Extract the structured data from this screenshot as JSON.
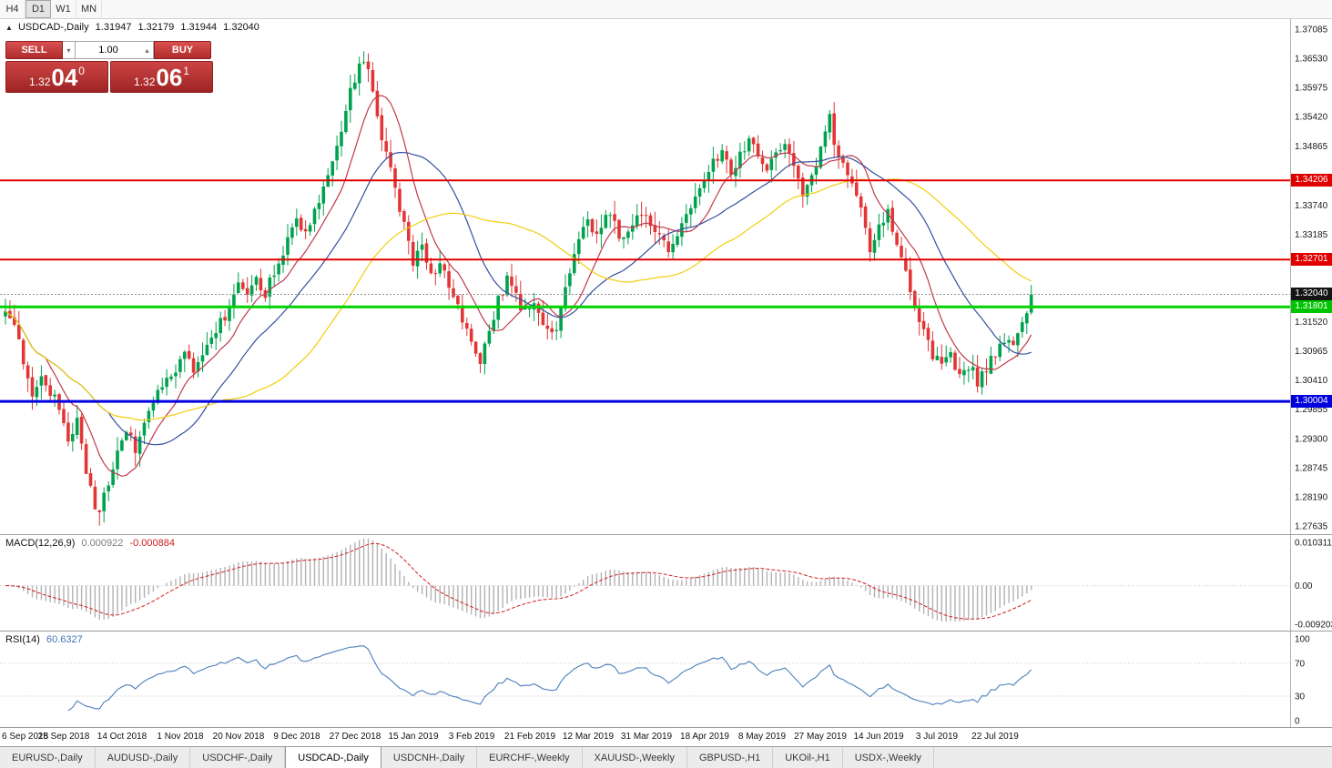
{
  "toolbar": {
    "periods": [
      "H4",
      "D1",
      "W1",
      "MN"
    ],
    "active_period": "D1"
  },
  "symbol_header": {
    "collapse_icon": "▲",
    "title": "USDCAD-,Daily",
    "open": "1.31947",
    "high": "1.32179",
    "low": "1.31944",
    "close": "1.32040"
  },
  "trade_widget": {
    "sell_label": "SELL",
    "buy_label": "BUY",
    "volume": "1.00",
    "down_arrow": "▾",
    "up_arrow": "▴",
    "bid": {
      "big": "1.32",
      "pips": "04",
      "pipette": "0"
    },
    "ask": {
      "big": "1.32",
      "pips": "06",
      "pipette": "1"
    }
  },
  "indicators": {
    "macd": {
      "label": "MACD(12,26,9)",
      "main_value": "0.000922",
      "signal_value": "-0.000884"
    },
    "rsi": {
      "label": "RSI(14)",
      "value": "60.6327"
    }
  },
  "tabs": [
    "EURUSD-,Daily",
    "AUDUSD-,Daily",
    "USDCHF-,Daily",
    "USDCAD-,Daily",
    "USDCNH-,Daily",
    "EURCHF-,Weekly",
    "XAUUSD-,Weekly",
    "GBPUSD-,H1",
    "UKOil-,H1",
    "USDX-,Weekly"
  ],
  "active_tab": "USDCAD-,Daily",
  "chart_data": {
    "type": "candlestick",
    "symbol": "USDCAD",
    "timeframe": "Daily",
    "colors": {
      "up": "#00a24e",
      "down": "#e23636"
    },
    "price_axis": {
      "min": 1.27635,
      "max": 1.37085,
      "ticks": [
        {
          "label": "1.37085",
          "value": 1.37085
        },
        {
          "label": "1.36530",
          "value": 1.3653
        },
        {
          "label": "1.35975",
          "value": 1.35975
        },
        {
          "label": "1.35420",
          "value": 1.3542
        },
        {
          "label": "1.34865",
          "value": 1.34865
        },
        {
          "label": "1.33740",
          "value": 1.3374
        },
        {
          "label": "1.33185",
          "value": 1.33185
        },
        {
          "label": "1.31520",
          "value": 1.3152
        },
        {
          "label": "1.30965",
          "value": 1.30965
        },
        {
          "label": "1.30410",
          "value": 1.3041
        },
        {
          "label": "1.29855",
          "value": 1.29855
        },
        {
          "label": "1.29300",
          "value": 1.293
        },
        {
          "label": "1.28745",
          "value": 1.28745
        },
        {
          "label": "1.28190",
          "value": 1.2819
        },
        {
          "label": "1.27635",
          "value": 1.27635
        }
      ]
    },
    "h_lines": [
      {
        "value": 1.34206,
        "color": "#e00000",
        "width": 2
      },
      {
        "value": 1.32701,
        "color": "#e00000",
        "width": 2
      },
      {
        "value": 1.31801,
        "color": "#00d400",
        "width": 3
      },
      {
        "value": 1.30004,
        "color": "#0000e0",
        "width": 3
      }
    ],
    "badges": [
      {
        "label": "1.34206",
        "value": 1.34206,
        "bg": "#e00000",
        "fg": "#ffffff"
      },
      {
        "label": "1.32701",
        "value": 1.32701,
        "bg": "#e00000",
        "fg": "#ffffff"
      },
      {
        "label": "1.32040",
        "value": 1.3204,
        "bg": "#141414",
        "fg": "#ffffff"
      },
      {
        "label": "1.31801",
        "value": 1.31801,
        "bg": "#00c400",
        "fg": "#ffffff"
      },
      {
        "label": "1.30004",
        "value": 1.30004,
        "bg": "#0000dd",
        "fg": "#ffffff"
      }
    ],
    "current_price": 1.3204,
    "date_labels": [
      "6 Sep 2018",
      "25 Sep 2018",
      "14 Oct 2018",
      "1 Nov 2018",
      "20 Nov 2018",
      "9 Dec 2018",
      "27 Dec 2018",
      "15 Jan 2019",
      "3 Feb 2019",
      "21 Feb 2019",
      "12 Mar 2019",
      "31 Mar 2019",
      "18 Apr 2019",
      "8 May 2019",
      "27 May 2019",
      "14 Jun 2019",
      "3 Jul 2019",
      "22 Jul 2019"
    ],
    "candle_count": 230,
    "close_path_anchors": [
      [
        0,
        1.317
      ],
      [
        2,
        1.3152
      ],
      [
        4,
        1.308
      ],
      [
        6,
        1.3008
      ],
      [
        8,
        1.3052
      ],
      [
        10,
        1.3022
      ],
      [
        12,
        1.2988
      ],
      [
        14,
        1.2932
      ],
      [
        16,
        1.2958
      ],
      [
        18,
        1.2872
      ],
      [
        20,
        1.2802
      ],
      [
        21,
        1.2792
      ],
      [
        23,
        1.2852
      ],
      [
        25,
        1.29
      ],
      [
        27,
        1.2948
      ],
      [
        29,
        1.2912
      ],
      [
        31,
        1.2968
      ],
      [
        34,
        1.3012
      ],
      [
        37,
        1.3052
      ],
      [
        40,
        1.3096
      ],
      [
        42,
        1.3048
      ],
      [
        44,
        1.308
      ],
      [
        46,
        1.3118
      ],
      [
        49,
        1.3165
      ],
      [
        52,
        1.3232
      ],
      [
        54,
        1.3192
      ],
      [
        56,
        1.3242
      ],
      [
        58,
        1.3205
      ],
      [
        60,
        1.3248
      ],
      [
        62,
        1.3288
      ],
      [
        65,
        1.334
      ],
      [
        67,
        1.3318
      ],
      [
        69,
        1.336
      ],
      [
        71,
        1.3405
      ],
      [
        73,
        1.3452
      ],
      [
        75,
        1.352
      ],
      [
        77,
        1.3585
      ],
      [
        79,
        1.3638
      ],
      [
        80,
        1.3652
      ],
      [
        81,
        1.3628
      ],
      [
        83,
        1.3548
      ],
      [
        85,
        1.347
      ],
      [
        87,
        1.3398
      ],
      [
        89,
        1.3332
      ],
      [
        91,
        1.3262
      ],
      [
        93,
        1.3288
      ],
      [
        95,
        1.3242
      ],
      [
        97,
        1.3262
      ],
      [
        99,
        1.3218
      ],
      [
        101,
        1.3185
      ],
      [
        103,
        1.313
      ],
      [
        105,
        1.3085
      ],
      [
        106,
        1.3072
      ],
      [
        108,
        1.3125
      ],
      [
        110,
        1.3192
      ],
      [
        112,
        1.3228
      ],
      [
        114,
        1.3202
      ],
      [
        116,
        1.3168
      ],
      [
        118,
        1.3188
      ],
      [
        120,
        1.3148
      ],
      [
        122,
        1.3122
      ],
      [
        124,
        1.3172
      ],
      [
        126,
        1.3252
      ],
      [
        128,
        1.3312
      ],
      [
        130,
        1.3342
      ],
      [
        132,
        1.3322
      ],
      [
        134,
        1.3356
      ],
      [
        136,
        1.3332
      ],
      [
        138,
        1.3302
      ],
      [
        140,
        1.3336
      ],
      [
        142,
        1.3362
      ],
      [
        144,
        1.3342
      ],
      [
        146,
        1.3312
      ],
      [
        148,
        1.3282
      ],
      [
        150,
        1.3322
      ],
      [
        152,
        1.3356
      ],
      [
        154,
        1.3388
      ],
      [
        156,
        1.3432
      ],
      [
        158,
        1.3452
      ],
      [
        160,
        1.3478
      ],
      [
        162,
        1.3442
      ],
      [
        164,
        1.3468
      ],
      [
        166,
        1.3492
      ],
      [
        168,
        1.3472
      ],
      [
        170,
        1.3448
      ],
      [
        172,
        1.3468
      ],
      [
        174,
        1.3482
      ],
      [
        176,
        1.3442
      ],
      [
        178,
        1.3402
      ],
      [
        180,
        1.3432
      ],
      [
        182,
        1.3475
      ],
      [
        184,
        1.3542
      ],
      [
        185,
        1.3498
      ],
      [
        187,
        1.3452
      ],
      [
        189,
        1.3422
      ],
      [
        191,
        1.3362
      ],
      [
        193,
        1.3295
      ],
      [
        195,
        1.3332
      ],
      [
        197,
        1.3362
      ],
      [
        199,
        1.3302
      ],
      [
        201,
        1.3242
      ],
      [
        203,
        1.3182
      ],
      [
        205,
        1.3132
      ],
      [
        207,
        1.3092
      ],
      [
        209,
        1.3068
      ],
      [
        211,
        1.3092
      ],
      [
        213,
        1.3052
      ],
      [
        215,
        1.3072
      ],
      [
        217,
        1.3038
      ],
      [
        219,
        1.3062
      ],
      [
        221,
        1.3092
      ],
      [
        223,
        1.3122
      ],
      [
        225,
        1.3108
      ],
      [
        227,
        1.3152
      ],
      [
        229,
        1.3204
      ]
    ],
    "moving_averages": [
      {
        "name": "ma-fast-line",
        "period": 10,
        "color": "#c0394b"
      },
      {
        "name": "ma-mid-line",
        "period": 24,
        "color": "#34509e"
      },
      {
        "name": "ma-slow-line",
        "period": 50,
        "color": "#f2ce0d"
      }
    ],
    "macd_panel": {
      "params": [
        12,
        26,
        9
      ],
      "range": {
        "max": 0.010311,
        "min": -0.009203
      },
      "axis_labels": [
        {
          "label": "0.010311",
          "value": 0.010311
        },
        {
          "label": "0.00",
          "value": 0
        },
        {
          "label": "-0.009203",
          "value": -0.009203
        }
      ],
      "hist_color": "#b2b2b2",
      "signal_color": "#d02020"
    },
    "rsi_panel": {
      "period": 14,
      "range": {
        "min": 0,
        "max": 100
      },
      "axis_labels": [
        {
          "label": "100",
          "value": 100
        },
        {
          "label": "70",
          "value": 70
        },
        {
          "label": "30",
          "value": 30
        },
        {
          "label": "0",
          "value": 0
        }
      ],
      "levels": [
        70,
        30
      ],
      "line_color": "#4a7ebb"
    }
  }
}
